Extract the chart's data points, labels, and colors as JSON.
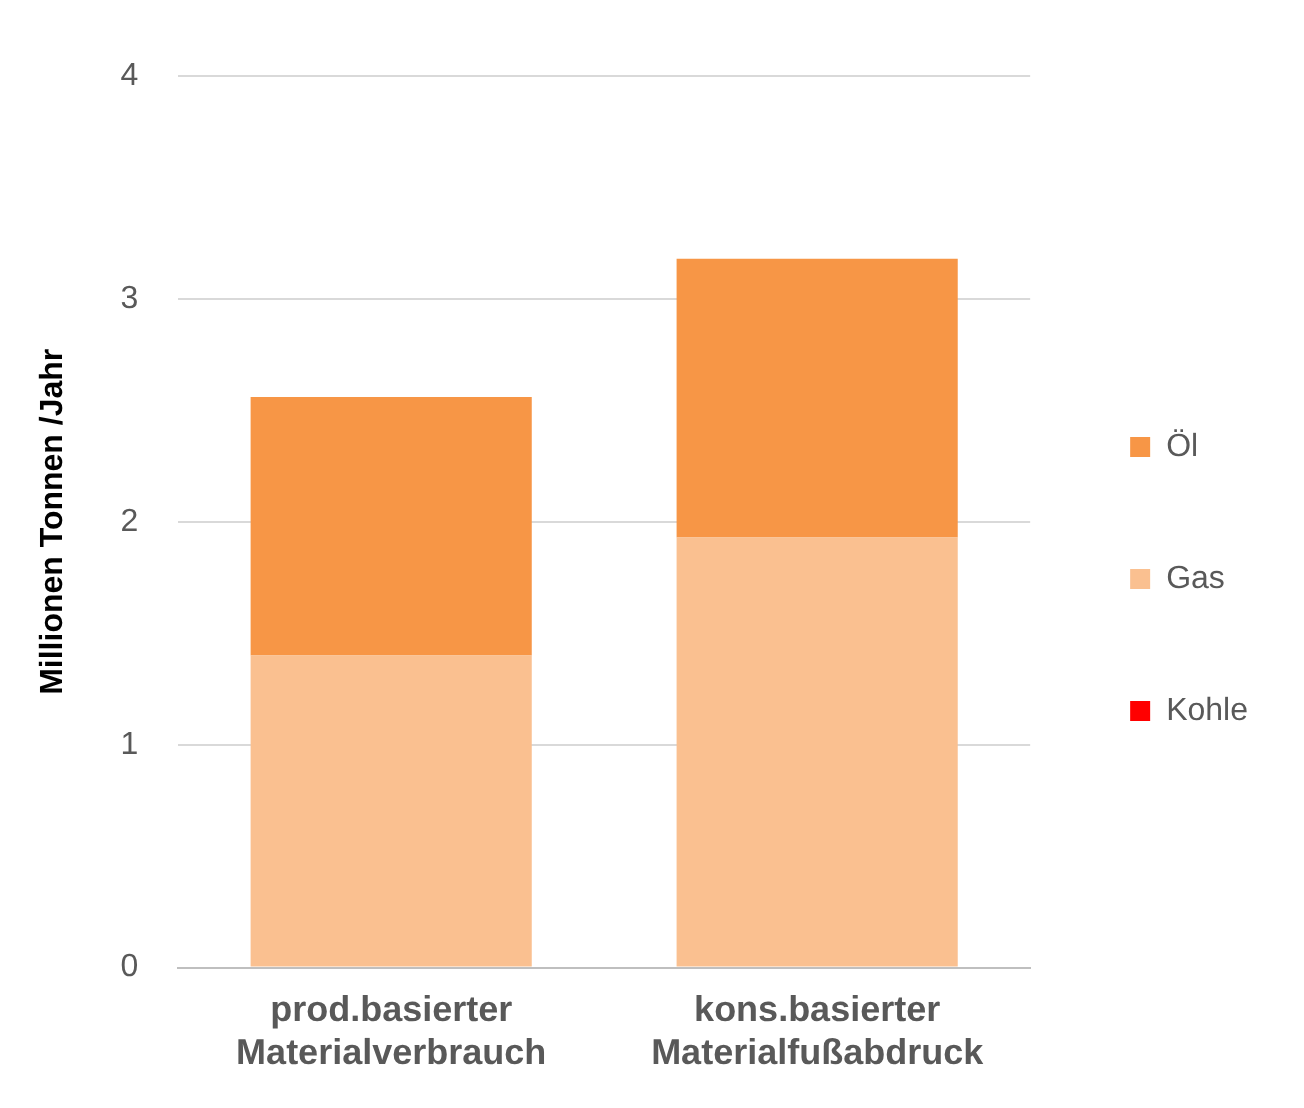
{
  "chart_data": {
    "type": "bar",
    "stacked": true,
    "ylabel": "Millionen Tonnen /Jahr",
    "categories": [
      "prod.basierter Materialverbrauch",
      "kons.basierter Materialfußabdruck"
    ],
    "series": [
      {
        "name": "Kohle",
        "color": "#ff0000",
        "values": [
          0,
          0
        ]
      },
      {
        "name": "Gas",
        "color": "#fac090",
        "values": [
          1.4,
          1.93
        ]
      },
      {
        "name": "Öl",
        "color": "#f79646",
        "values": [
          1.16,
          1.25
        ]
      }
    ],
    "ylim": [
      0,
      4
    ],
    "yticks": [
      0,
      1,
      2,
      3,
      4
    ],
    "grid": "y",
    "legend": "right"
  }
}
